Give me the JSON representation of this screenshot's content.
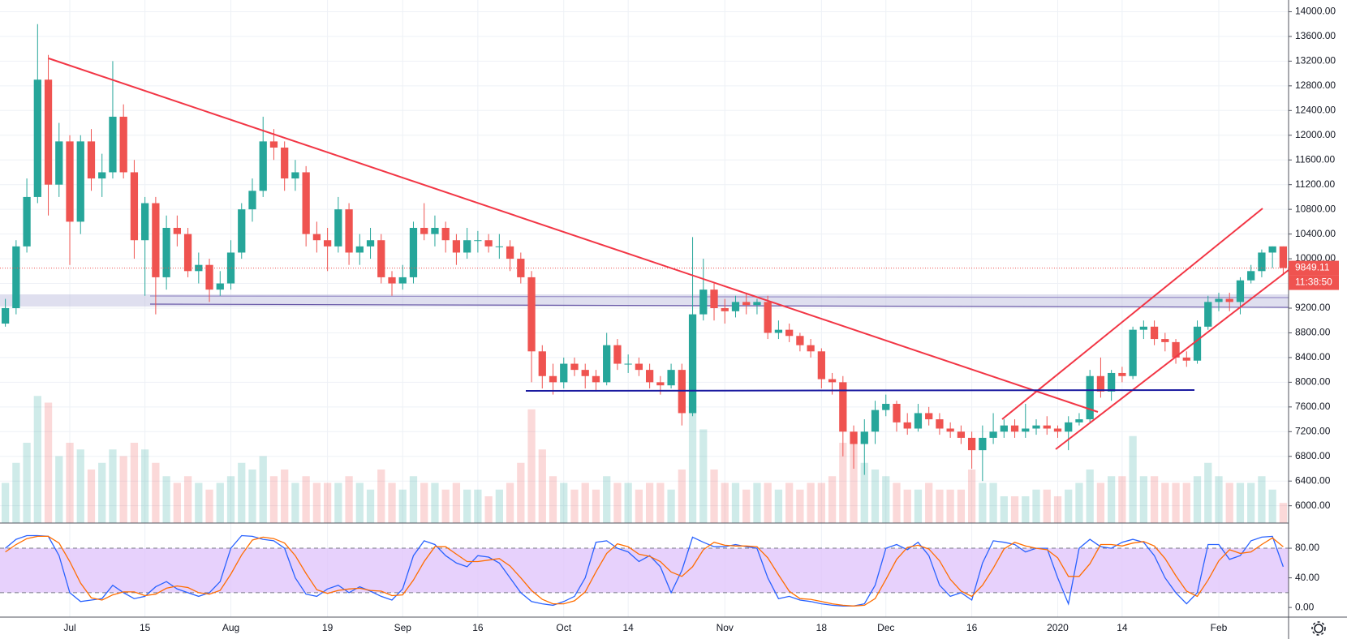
{
  "chart_data": [
    {
      "type": "candlestick",
      "up_color": "#26a69a",
      "down_color": "#ef5350",
      "categories": [
        null,
        null,
        null,
        null,
        null,
        null,
        "Jul",
        null,
        null,
        null,
        null,
        null,
        null,
        "15",
        null,
        null,
        null,
        null,
        null,
        null,
        null,
        "Aug",
        null,
        null,
        null,
        null,
        null,
        null,
        null,
        null,
        "19",
        null,
        null,
        null,
        null,
        null,
        null,
        "Sep",
        null,
        null,
        null,
        null,
        null,
        null,
        "16",
        null,
        null,
        null,
        null,
        null,
        null,
        null,
        "Oct",
        null,
        null,
        null,
        null,
        null,
        "14",
        null,
        null,
        null,
        null,
        null,
        null,
        null,
        null,
        "Nov",
        null,
        null,
        null,
        null,
        null,
        null,
        null,
        null,
        "18",
        null,
        null,
        null,
        null,
        null,
        "Dec",
        null,
        null,
        null,
        null,
        null,
        null,
        null,
        "16",
        null,
        null,
        null,
        null,
        null,
        null,
        null,
        "2020",
        null,
        null,
        null,
        null,
        null,
        "14",
        null,
        null,
        null,
        null,
        null,
        null,
        null,
        null,
        "Feb",
        null,
        null,
        null,
        null,
        null,
        null
      ],
      "ohlc": [
        [
          8950,
          9350,
          8900,
          9200
        ],
        [
          9200,
          10300,
          9100,
          10200
        ],
        [
          10200,
          11300,
          10100,
          11000
        ],
        [
          11000,
          13800,
          10900,
          12900
        ],
        [
          12900,
          13300,
          10700,
          11200
        ],
        [
          11200,
          12200,
          11000,
          11900
        ],
        [
          11900,
          12000,
          9900,
          10600
        ],
        [
          10600,
          12000,
          10400,
          11900
        ],
        [
          11900,
          12100,
          11100,
          11300
        ],
        [
          11300,
          11700,
          11000,
          11400
        ],
        [
          11400,
          13200,
          11300,
          12300
        ],
        [
          12300,
          12500,
          11300,
          11400
        ],
        [
          11400,
          11600,
          10000,
          10300
        ],
        [
          10300,
          11000,
          9400,
          10900
        ],
        [
          10900,
          11000,
          9100,
          9700
        ],
        [
          9700,
          10700,
          9500,
          10500
        ],
        [
          10500,
          10700,
          10200,
          10400
        ],
        [
          10400,
          10500,
          9700,
          9800
        ],
        [
          9800,
          10100,
          9600,
          9900
        ],
        [
          9900,
          10000,
          9300,
          9500
        ],
        [
          9500,
          9800,
          9400,
          9600
        ],
        [
          9600,
          10300,
          9500,
          10100
        ],
        [
          10100,
          10900,
          10000,
          10800
        ],
        [
          10800,
          11300,
          10600,
          11100
        ],
        [
          11100,
          12300,
          11000,
          11900
        ],
        [
          11900,
          12100,
          11600,
          11800
        ],
        [
          11800,
          11900,
          11100,
          11300
        ],
        [
          11300,
          11600,
          11100,
          11400
        ],
        [
          11400,
          11500,
          10200,
          10400
        ],
        [
          10400,
          10600,
          10100,
          10300
        ],
        [
          10300,
          10500,
          9800,
          10200
        ],
        [
          10200,
          11000,
          10100,
          10800
        ],
        [
          10800,
          10900,
          9900,
          10100
        ],
        [
          10100,
          10400,
          9900,
          10200
        ],
        [
          10200,
          10500,
          10000,
          10300
        ],
        [
          10300,
          10400,
          9600,
          9700
        ],
        [
          9700,
          9800,
          9400,
          9600
        ],
        [
          9600,
          9900,
          9500,
          9700
        ],
        [
          9700,
          10600,
          9600,
          10500
        ],
        [
          10500,
          10900,
          10300,
          10400
        ],
        [
          10400,
          10700,
          10200,
          10500
        ],
        [
          10500,
          10600,
          10100,
          10300
        ],
        [
          10300,
          10400,
          9900,
          10100
        ],
        [
          10100,
          10500,
          10000,
          10300
        ],
        [
          10300,
          10450,
          10100,
          10300
        ],
        [
          10300,
          10400,
          10100,
          10200
        ],
        [
          10200,
          10400,
          10000,
          10200
        ],
        [
          10200,
          10300,
          9800,
          10000
        ],
        [
          10000,
          10100,
          9600,
          9700
        ],
        [
          9700,
          9800,
          8000,
          8500
        ],
        [
          8500,
          8600,
          7900,
          8100
        ],
        [
          8100,
          8300,
          7800,
          8000
        ],
        [
          8000,
          8400,
          7900,
          8300
        ],
        [
          8300,
          8400,
          8100,
          8200
        ],
        [
          8200,
          8300,
          7900,
          8100
        ],
        [
          8100,
          8200,
          7850,
          8000
        ],
        [
          8000,
          8800,
          7950,
          8600
        ],
        [
          8600,
          8700,
          8200,
          8300
        ],
        [
          8300,
          8450,
          8150,
          8300
        ],
        [
          8300,
          8400,
          8100,
          8200
        ],
        [
          8200,
          8300,
          7900,
          8000
        ],
        [
          8000,
          8100,
          7800,
          7950
        ],
        [
          7950,
          8300,
          7900,
          8200
        ],
        [
          8200,
          8300,
          7300,
          7500
        ],
        [
          7500,
          10350,
          7450,
          9100
        ],
        [
          9100,
          10000,
          9000,
          9500
        ],
        [
          9500,
          9600,
          9000,
          9200
        ],
        [
          9200,
          9350,
          8950,
          9150
        ],
        [
          9150,
          9400,
          9050,
          9300
        ],
        [
          9300,
          9450,
          9100,
          9250
        ],
        [
          9250,
          9350,
          9100,
          9300
        ],
        [
          9300,
          9400,
          8700,
          8800
        ],
        [
          8800,
          9000,
          8700,
          8850
        ],
        [
          8850,
          8950,
          8650,
          8750
        ],
        [
          8750,
          8800,
          8500,
          8600
        ],
        [
          8600,
          8700,
          8400,
          8500
        ],
        [
          8500,
          8550,
          7900,
          8050
        ],
        [
          8050,
          8150,
          7800,
          8000
        ],
        [
          8000,
          8100,
          6800,
          7200
        ],
        [
          7200,
          7300,
          6600,
          7000
        ],
        [
          7000,
          7400,
          6500,
          7200
        ],
        [
          7200,
          7700,
          7000,
          7550
        ],
        [
          7550,
          7800,
          7450,
          7650
        ],
        [
          7650,
          7700,
          7200,
          7350
        ],
        [
          7350,
          7500,
          7150,
          7250
        ],
        [
          7250,
          7650,
          7200,
          7500
        ],
        [
          7500,
          7600,
          7300,
          7400
        ],
        [
          7400,
          7500,
          7150,
          7250
        ],
        [
          7250,
          7350,
          7100,
          7200
        ],
        [
          7200,
          7300,
          7000,
          7100
        ],
        [
          7100,
          7200,
          6600,
          6900
        ],
        [
          6900,
          7300,
          6400,
          7100
        ],
        [
          7100,
          7500,
          7000,
          7200
        ],
        [
          7200,
          7400,
          7100,
          7300
        ],
        [
          7300,
          7400,
          7100,
          7200
        ],
        [
          7200,
          7650,
          7100,
          7250
        ],
        [
          7250,
          7400,
          7150,
          7300
        ],
        [
          7300,
          7450,
          7150,
          7250
        ],
        [
          7250,
          7300,
          7100,
          7200
        ],
        [
          7200,
          7450,
          6900,
          7350
        ],
        [
          7350,
          7500,
          7300,
          7400
        ],
        [
          7400,
          8200,
          7350,
          8100
        ],
        [
          8100,
          8400,
          7750,
          7850
        ],
        [
          7850,
          8200,
          7700,
          8150
        ],
        [
          8150,
          8250,
          8000,
          8100
        ],
        [
          8100,
          8900,
          8050,
          8850
        ],
        [
          8850,
          9000,
          8700,
          8900
        ],
        [
          8900,
          9000,
          8600,
          8700
        ],
        [
          8700,
          8800,
          8500,
          8650
        ],
        [
          8650,
          8700,
          8300,
          8400
        ],
        [
          8400,
          8500,
          8250,
          8350
        ],
        [
          8350,
          9000,
          8300,
          8900
        ],
        [
          8900,
          9400,
          8850,
          9300
        ],
        [
          9300,
          9450,
          9150,
          9350
        ],
        [
          9350,
          9450,
          9150,
          9300
        ],
        [
          9300,
          9700,
          9100,
          9650
        ],
        [
          9650,
          9900,
          9600,
          9800
        ],
        [
          9800,
          10150,
          9700,
          10100
        ],
        [
          10100,
          10200,
          9850,
          10200
        ],
        [
          10200,
          10200,
          9750,
          9849.11
        ]
      ],
      "volume": [
        30,
        45,
        60,
        95,
        90,
        50,
        60,
        55,
        40,
        45,
        55,
        50,
        60,
        55,
        45,
        35,
        30,
        35,
        30,
        25,
        30,
        35,
        45,
        40,
        50,
        35,
        40,
        30,
        35,
        30,
        30,
        30,
        35,
        30,
        25,
        40,
        30,
        25,
        35,
        30,
        30,
        25,
        30,
        25,
        25,
        20,
        25,
        30,
        45,
        85,
        55,
        35,
        30,
        25,
        30,
        25,
        35,
        30,
        30,
        25,
        30,
        30,
        25,
        40,
        100,
        70,
        40,
        30,
        30,
        25,
        30,
        30,
        25,
        30,
        25,
        30,
        30,
        35,
        60,
        60,
        45,
        40,
        35,
        30,
        25,
        25,
        30,
        25,
        25,
        25,
        40,
        30,
        30,
        20,
        20,
        20,
        25,
        25,
        20,
        25,
        30,
        40,
        30,
        35,
        35,
        65,
        35,
        35,
        30,
        30,
        30,
        35,
        45,
        35,
        30,
        30,
        30,
        35,
        25,
        15
      ],
      "ylim": [
        5720,
        14190
      ],
      "yticks": [
        {
          "value": 6000,
          "label": "6000.00"
        },
        {
          "value": 6400,
          "label": "6400.00"
        },
        {
          "value": 6800,
          "label": "6800.00"
        },
        {
          "value": 7200,
          "label": "7200.00"
        },
        {
          "value": 7600,
          "label": "7600.00"
        },
        {
          "value": 8000,
          "label": "8000.00"
        },
        {
          "value": 8400,
          "label": "8400.00"
        },
        {
          "value": 8800,
          "label": "8800.00"
        },
        {
          "value": 9200,
          "label": "9200.00"
        },
        {
          "value": 9600,
          "label": "9600.00"
        },
        {
          "value": 10000,
          "label": "10000.00"
        },
        {
          "value": 10400,
          "label": "10400.00"
        },
        {
          "value": 10800,
          "label": "10800.00"
        },
        {
          "value": 11200,
          "label": "11200.00"
        },
        {
          "value": 11600,
          "label": "11600.00"
        },
        {
          "value": 12000,
          "label": "12000.00"
        },
        {
          "value": 12400,
          "label": "12400.00"
        },
        {
          "value": 12800,
          "label": "12800.00"
        },
        {
          "value": 13200,
          "label": "13200.00"
        },
        {
          "value": 13600,
          "label": "13600.00"
        },
        {
          "value": 14000,
          "label": "14000.00"
        }
      ],
      "grid": true,
      "last_price": 9849.11,
      "countdown": "11:38:50"
    },
    {
      "type": "line",
      "series": [
        {
          "color": "#2962ff",
          "values": [
            80,
            92,
            97,
            97,
            96,
            70,
            20,
            8,
            10,
            12,
            30,
            20,
            12,
            15,
            28,
            35,
            25,
            20,
            15,
            20,
            35,
            80,
            97,
            96,
            92,
            90,
            80,
            40,
            18,
            15,
            25,
            30,
            20,
            28,
            22,
            15,
            10,
            25,
            70,
            90,
            85,
            70,
            60,
            55,
            70,
            68,
            60,
            40,
            20,
            8,
            5,
            3,
            8,
            15,
            40,
            88,
            90,
            80,
            75,
            62,
            70,
            55,
            20,
            50,
            95,
            88,
            82,
            82,
            85,
            82,
            80,
            40,
            12,
            15,
            10,
            8,
            5,
            3,
            2,
            2,
            5,
            30,
            80,
            85,
            78,
            88,
            70,
            30,
            15,
            20,
            10,
            60,
            90,
            88,
            85,
            75,
            80,
            80,
            40,
            5,
            80,
            92,
            82,
            80,
            88,
            92,
            88,
            70,
            40,
            20,
            5,
            20,
            85,
            85,
            65,
            70,
            90,
            95,
            96,
            55
          ]
        },
        {
          "color": "#ff6d00",
          "values": [
            75,
            85,
            93,
            96,
            96,
            87,
            62,
            33,
            13,
            10,
            17,
            21,
            21,
            16,
            18,
            26,
            29,
            27,
            20,
            18,
            23,
            45,
            71,
            91,
            95,
            93,
            87,
            70,
            46,
            24,
            19,
            23,
            25,
            26,
            23,
            22,
            16,
            17,
            37,
            62,
            82,
            82,
            72,
            62,
            62,
            64,
            66,
            56,
            40,
            23,
            11,
            5,
            5,
            9,
            21,
            48,
            73,
            86,
            82,
            72,
            69,
            62,
            48,
            42,
            55,
            78,
            88,
            84,
            83,
            83,
            82,
            67,
            44,
            22,
            12,
            11,
            8,
            5,
            3,
            2,
            3,
            12,
            38,
            65,
            81,
            84,
            79,
            63,
            38,
            22,
            15,
            30,
            53,
            79,
            88,
            83,
            80,
            78,
            67,
            42,
            42,
            59,
            85,
            85,
            83,
            87,
            89,
            83,
            66,
            43,
            22,
            15,
            37,
            63,
            78,
            73,
            75,
            85,
            94,
            82
          ]
        }
      ],
      "bands": [
        20,
        80
      ],
      "band_color": "#e1c6fb",
      "ylim": [
        -13,
        114
      ],
      "yticks": [
        {
          "value": 80,
          "label": "80.00"
        },
        {
          "value": 40,
          "label": "40.00"
        },
        {
          "value": 0,
          "label": "0.00"
        }
      ]
    }
  ]
}
